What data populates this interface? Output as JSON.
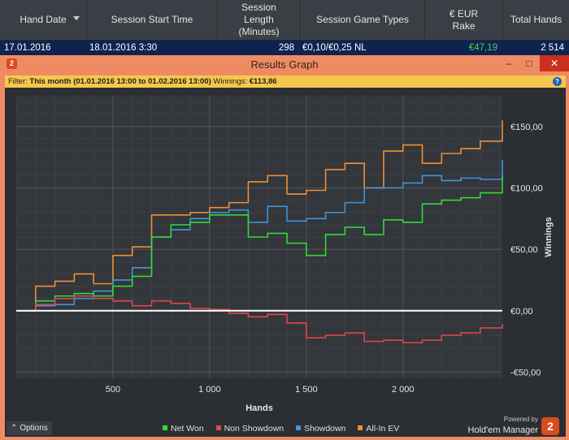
{
  "table": {
    "columns": [
      "Hand Date",
      "Session Start Time",
      "Session Length (Minutes)",
      "Session Game Types",
      "€ EUR Rake",
      "Total Hands"
    ],
    "row": {
      "hand_date": "17.01.2016",
      "start_time": "18.01.2016 3:30",
      "length": "298",
      "game_types": "€0,10/€0,25 NL",
      "rake": "€47,19",
      "total_hands": "2 514"
    }
  },
  "window": {
    "title": "Results Graph",
    "app_icon_text": "2",
    "controls": {
      "minimize": "–",
      "maximize": "□",
      "close": "✕"
    }
  },
  "filter": {
    "label": "Filter:",
    "period": "This month (01.01.2016 13:00 to 01.02.2016 13:00)",
    "winnings_label": "Winnings:",
    "winnings_value": "€113,86",
    "help_icon_text": "?"
  },
  "colors": {
    "net_won": "#33d93a",
    "non_showdown": "#e0474b",
    "showdown": "#3f95db",
    "all_in_ev": "#ef9033",
    "accent": "#ef8b63",
    "filter_bar": "#f5c84c",
    "selected_row": "#0e2350",
    "rake_value": "#4ed34e"
  },
  "chart_data": {
    "type": "line",
    "xlabel": "Hands",
    "ylabel": "Winnings",
    "xlim": [
      0,
      2514
    ],
    "ylim": [
      -55,
      175
    ],
    "xticks": [
      500,
      1000,
      1500,
      2000
    ],
    "xtick_labels": [
      "500",
      "1 000",
      "1 500",
      "2 000"
    ],
    "yticks": [
      -50,
      0,
      50,
      100,
      150
    ],
    "ytick_labels": [
      "-€50,00",
      "€0,00",
      "€50,00",
      "€100,00",
      "€150,00"
    ],
    "grid": true,
    "x": [
      0,
      100,
      200,
      300,
      400,
      500,
      600,
      700,
      800,
      900,
      1000,
      1100,
      1200,
      1300,
      1400,
      1500,
      1600,
      1700,
      1800,
      1900,
      2000,
      2100,
      2200,
      2300,
      2400,
      2514
    ],
    "series": [
      {
        "name": "Net Won",
        "values": [
          0,
          8,
          12,
          14,
          12,
          20,
          28,
          60,
          70,
          72,
          78,
          78,
          60,
          63,
          55,
          45,
          62,
          68,
          62,
          74,
          72,
          87,
          90,
          92,
          96,
          110
        ]
      },
      {
        "name": "Non Showdown",
        "values": [
          0,
          5,
          10,
          12,
          10,
          8,
          4,
          8,
          6,
          2,
          1,
          -2,
          -5,
          -3,
          -10,
          -22,
          -20,
          -18,
          -25,
          -24,
          -26,
          -24,
          -20,
          -18,
          -14,
          -11
        ]
      },
      {
        "name": "Showdown",
        "values": [
          0,
          4,
          5,
          10,
          16,
          25,
          35,
          60,
          66,
          75,
          80,
          82,
          72,
          85,
          73,
          75,
          80,
          88,
          100,
          100,
          104,
          110,
          106,
          108,
          107,
          123
        ]
      },
      {
        "name": "All-In EV",
        "values": [
          0,
          20,
          24,
          30,
          22,
          45,
          52,
          78,
          78,
          80,
          84,
          88,
          105,
          110,
          95,
          98,
          115,
          120,
          100,
          130,
          135,
          120,
          128,
          132,
          138,
          155
        ]
      }
    ],
    "legend_position": "bottom"
  },
  "footer": {
    "options_label": "Options",
    "options_icon": "chevron-up-icon",
    "powered_by": "Powered by",
    "brand": "Hold'em Manager",
    "brand_logo_text": "2"
  }
}
